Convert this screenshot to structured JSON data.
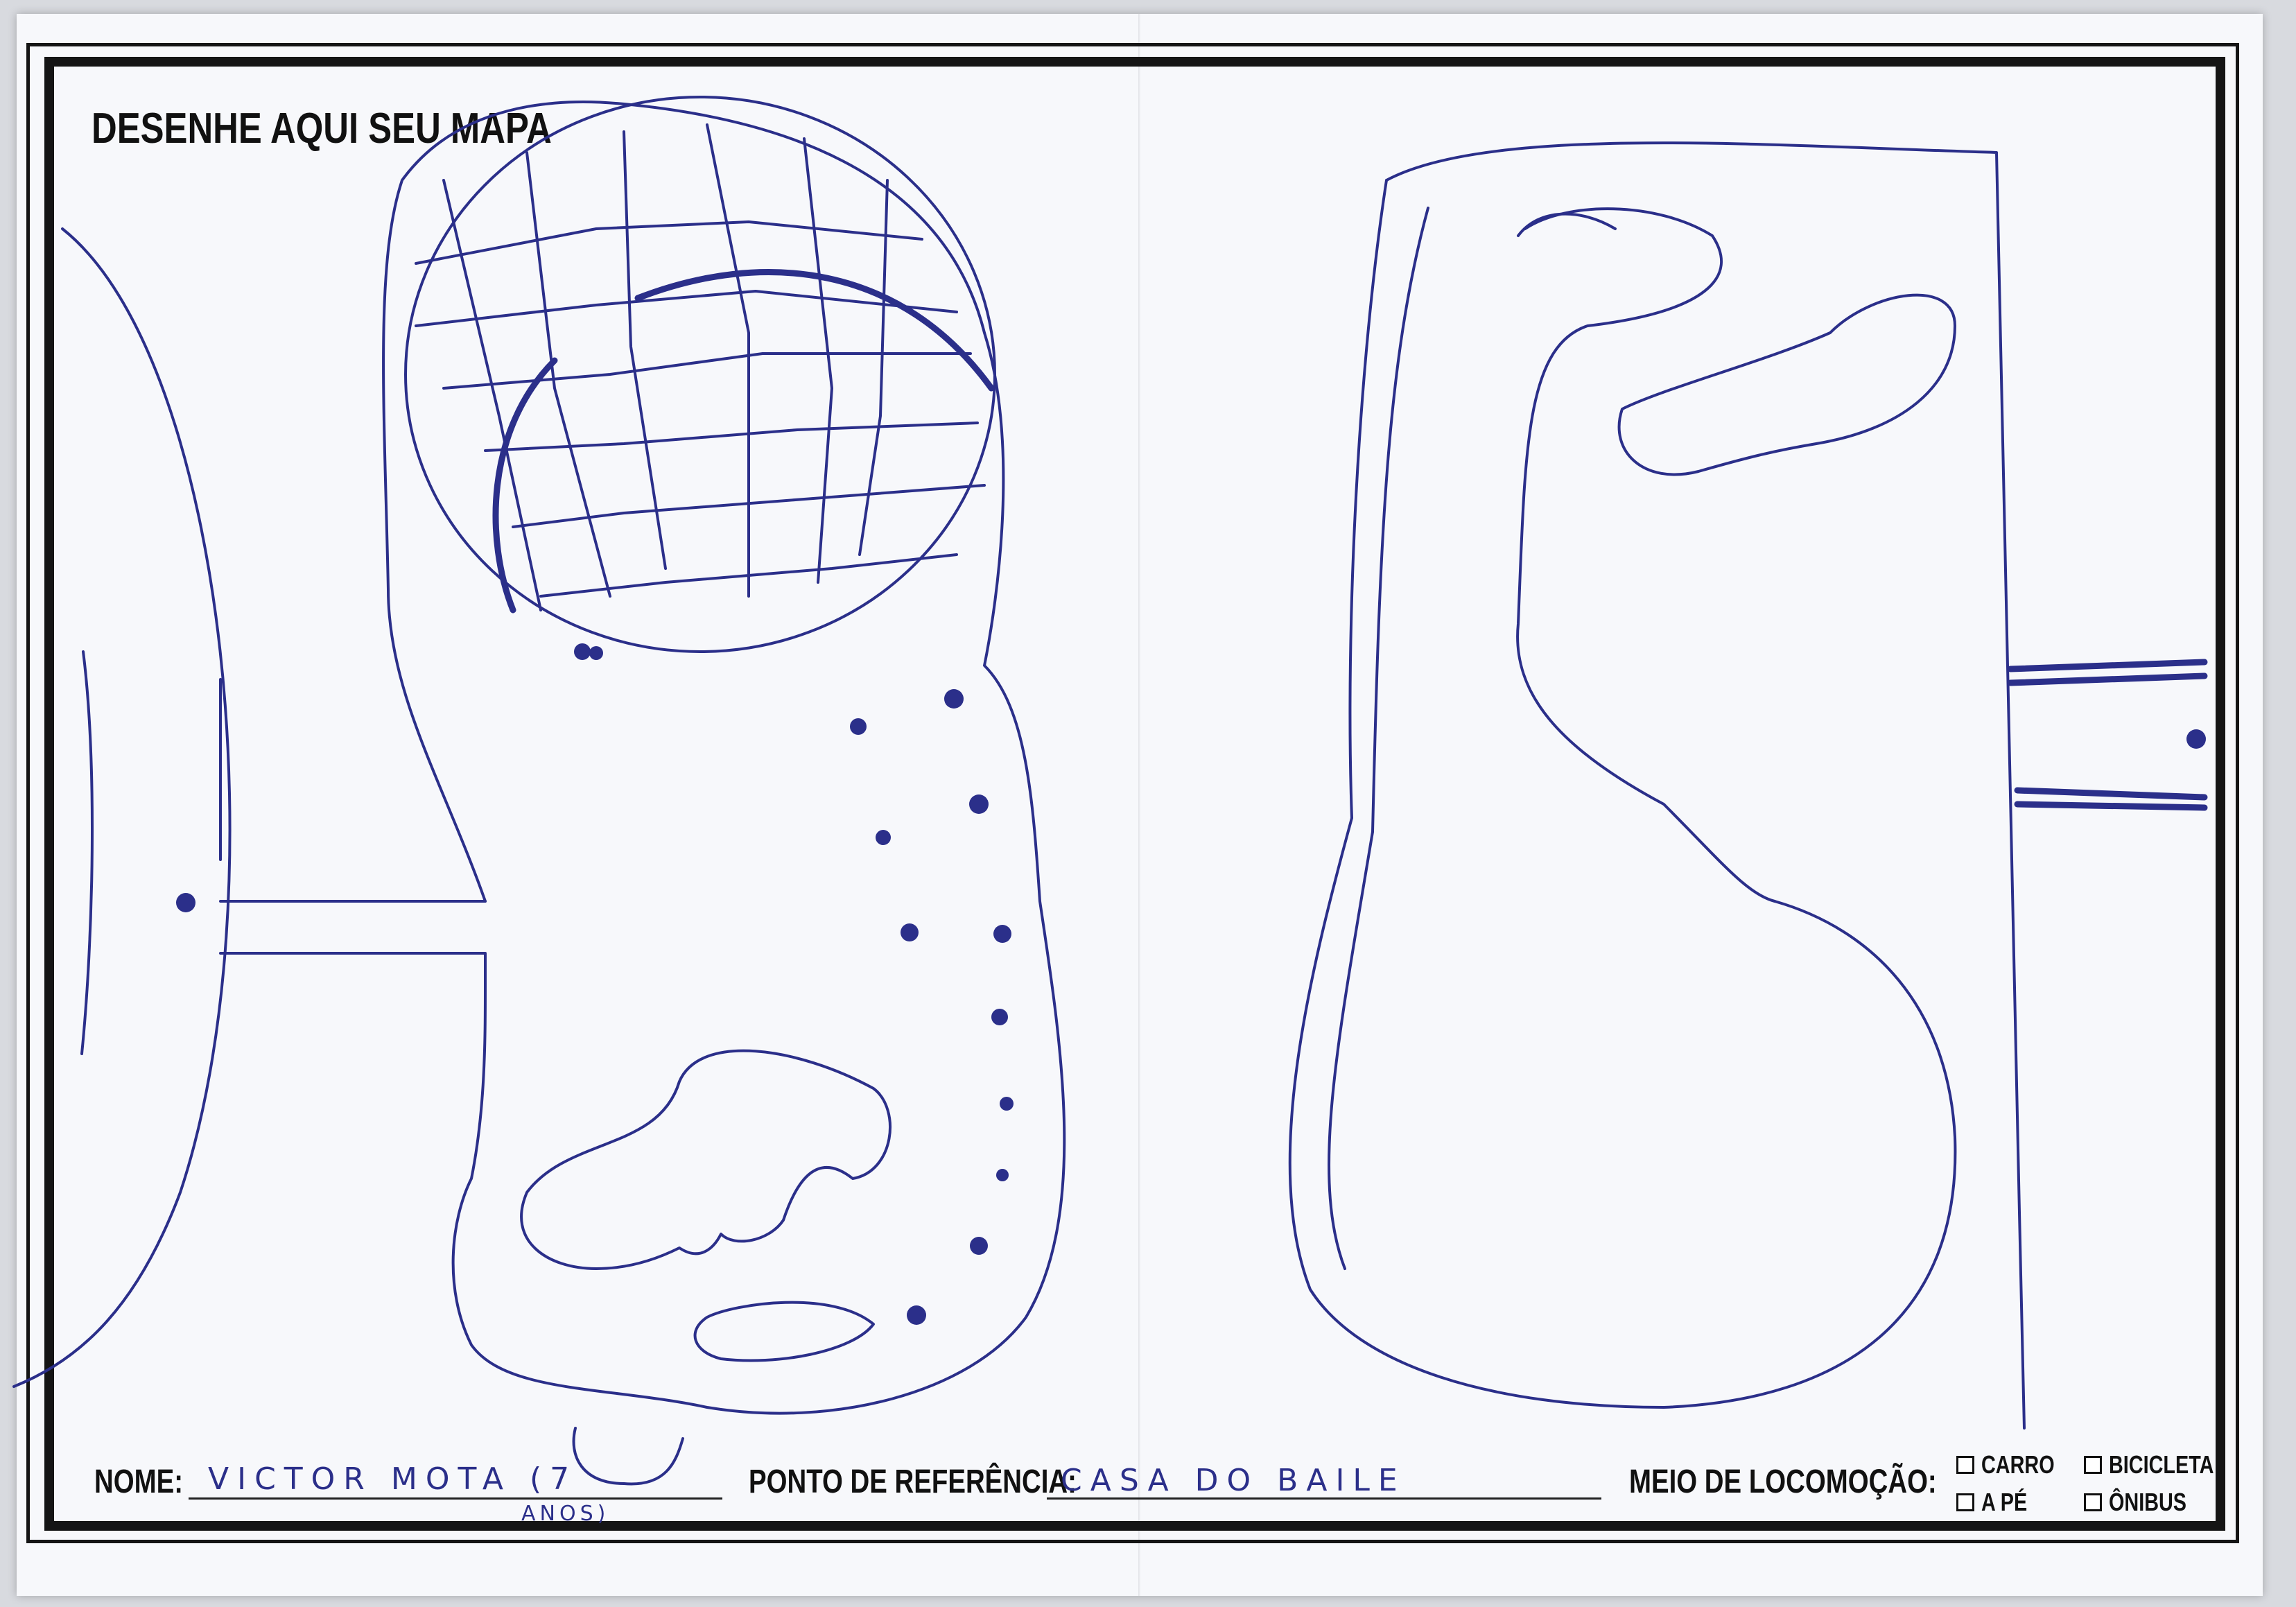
{
  "title": "DESENHE AQUI SEU MAPA",
  "footer": {
    "name_label": "NOME:",
    "name_value": "VICTOR MOTA (7",
    "name_value_cont": "ANOS)",
    "reference_label": "PONTO DE REFERÊNCIA:",
    "reference_value": "CASA DO BAILE",
    "transport_label": "MEIO DE LOCOMOÇÃO:",
    "transport_options": [
      "CARRO",
      "A PÉ",
      "BICICLETA",
      "ÔNIBUS"
    ]
  },
  "colors": {
    "ink": "#2b2f8a",
    "frame": "#151515",
    "paper": "#f7f8fb"
  }
}
